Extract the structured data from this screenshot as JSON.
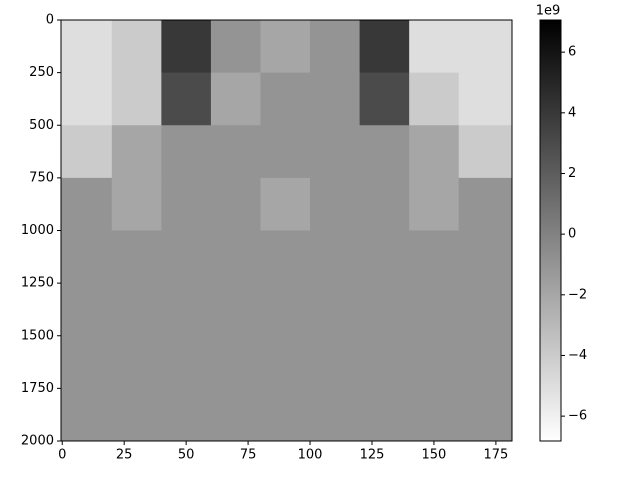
{
  "chart_data": {
    "type": "heatmap",
    "cmap": "gray_r",
    "x_edges": [
      -0.5,
      20,
      40,
      60,
      80,
      100,
      120,
      140,
      160,
      181.5
    ],
    "y_edges": [
      0,
      250,
      500,
      750,
      1000,
      1250,
      1500,
      1750,
      2000
    ],
    "values": [
      [
        -5,
        -4,
        4,
        -1,
        -2,
        -1,
        4,
        -5,
        -5
      ],
      [
        -5,
        -4,
        3,
        -2,
        -1,
        -1,
        3,
        -4,
        -5
      ],
      [
        -4,
        -2,
        -1,
        -1,
        -1,
        -1,
        -1,
        -2,
        -4
      ],
      [
        -1,
        -2,
        -1,
        -1,
        -2,
        -1,
        -1,
        -2,
        -1
      ],
      [
        -1,
        -1,
        -1,
        -1,
        -1,
        -1,
        -1,
        -1,
        -1
      ],
      [
        -1,
        -1,
        -1,
        -1,
        -1,
        -1,
        -1,
        -1,
        -1
      ],
      [
        -1,
        -1,
        -1,
        -1,
        -1,
        -1,
        -1,
        -1,
        -1
      ],
      [
        -1,
        -1,
        -1,
        -1,
        -1,
        -1,
        -1,
        -1,
        -1
      ]
    ],
    "xlim": [
      -0.5,
      181.5
    ],
    "ylim": [
      2000,
      0
    ],
    "xticks": [
      0,
      25,
      50,
      75,
      100,
      125,
      150,
      175
    ],
    "yticks": [
      0,
      250,
      500,
      750,
      1000,
      1250,
      1500,
      1750,
      2000
    ],
    "clim": [
      -6.82,
      7.06
    ],
    "cticks": [
      {
        "value": -6,
        "label": "−6"
      },
      {
        "value": -4,
        "label": "−4"
      },
      {
        "value": -2,
        "label": "−2"
      },
      0,
      2,
      4,
      6
    ],
    "colorbar_offset": "1e9"
  }
}
